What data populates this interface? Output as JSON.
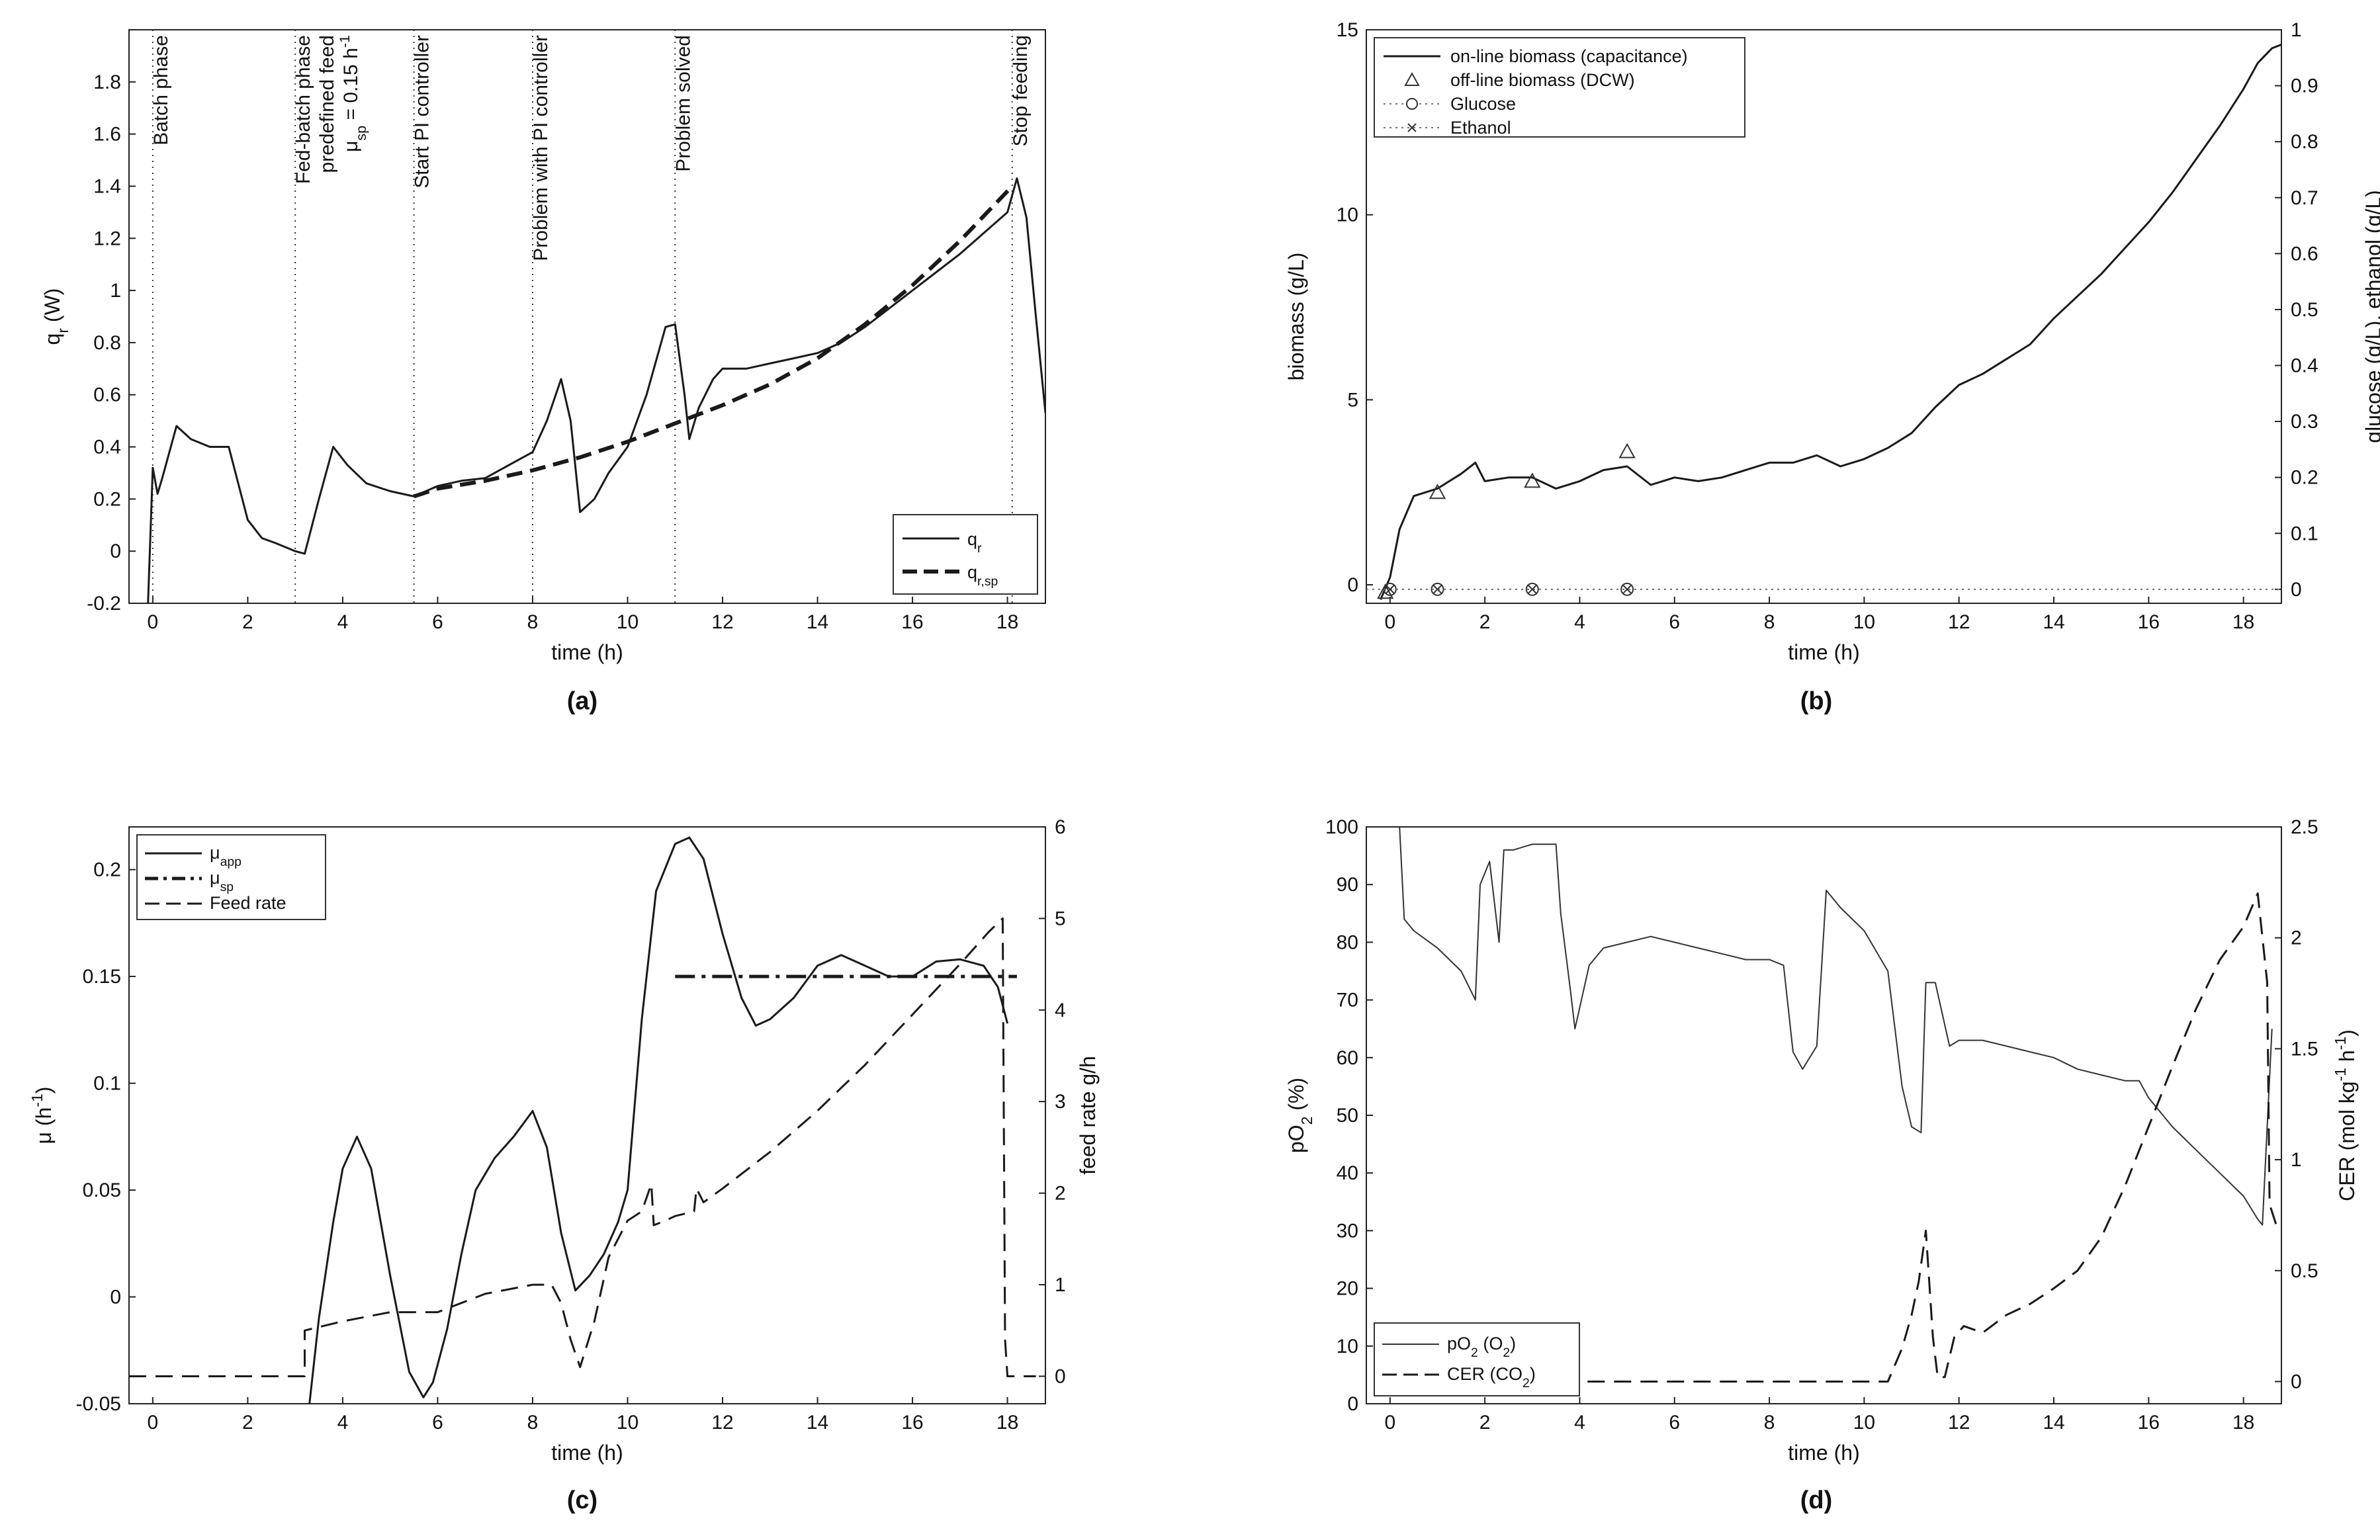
{
  "chart_data": [
    {
      "type": "line",
      "panel_label": "(a)",
      "xlabel": "time (h)",
      "ylabel": "q_r (W)",
      "xlim": [
        -0.5,
        18.8
      ],
      "ylim": [
        -0.2,
        2.0
      ],
      "xticks": [
        0,
        2,
        4,
        6,
        8,
        10,
        12,
        14,
        16,
        18
      ],
      "yticks": [
        -0.2,
        0,
        0.2,
        0.4,
        0.6,
        0.8,
        1,
        1.2,
        1.4,
        1.6,
        1.8
      ],
      "legend_position": "bottom-right",
      "vlines": [
        0,
        3,
        5.5,
        8,
        11,
        18.1
      ],
      "annotations": [
        {
          "x": 0,
          "text": "Batch phase"
        },
        {
          "x": 3,
          "text": "Fed-batch phase"
        },
        {
          "x": 3,
          "text": "predefined feed"
        },
        {
          "x": 3,
          "text": "μsp = 0.15 h⁻¹"
        },
        {
          "x": 5.5,
          "text": "Start PI controller"
        },
        {
          "x": 8,
          "text": "Problem with PI controller"
        },
        {
          "x": 11,
          "text": "Problem solved"
        },
        {
          "x": 18.1,
          "text": "Stop feeding"
        }
      ],
      "series": [
        {
          "name": "q_r",
          "style": "solid",
          "x": [
            -0.1,
            0,
            0.1,
            0.2,
            0.5,
            0.8,
            1.2,
            1.6,
            2.0,
            2.3,
            2.6,
            3.0,
            3.2,
            3.5,
            3.8,
            4.1,
            4.5,
            5.0,
            5.5,
            6.0,
            6.5,
            7.0,
            7.5,
            8.0,
            8.3,
            8.6,
            8.8,
            9.0,
            9.3,
            9.6,
            10.0,
            10.4,
            10.8,
            11.0,
            11.2,
            11.3,
            11.5,
            11.8,
            12.0,
            12.5,
            13.0,
            13.5,
            14.0,
            14.5,
            15.0,
            15.5,
            16.0,
            16.5,
            17.0,
            17.5,
            18.0,
            18.2,
            18.4,
            18.6,
            18.8
          ],
          "y": [
            -0.2,
            0.32,
            0.22,
            0.28,
            0.48,
            0.43,
            0.4,
            0.4,
            0.12,
            0.05,
            0.03,
            0.0,
            -0.01,
            0.2,
            0.4,
            0.33,
            0.26,
            0.23,
            0.21,
            0.25,
            0.27,
            0.28,
            0.33,
            0.38,
            0.5,
            0.66,
            0.5,
            0.15,
            0.2,
            0.3,
            0.4,
            0.6,
            0.86,
            0.87,
            0.6,
            0.43,
            0.55,
            0.66,
            0.7,
            0.7,
            0.72,
            0.74,
            0.76,
            0.8,
            0.86,
            0.93,
            1.0,
            1.07,
            1.14,
            1.22,
            1.3,
            1.43,
            1.28,
            0.9,
            0.53
          ]
        },
        {
          "name": "q_r,sp",
          "style": "dashed",
          "x": [
            5.5,
            6,
            7,
            8,
            9,
            10,
            11,
            12,
            13,
            14,
            15,
            16,
            17,
            18.1
          ],
          "y": [
            0.21,
            0.24,
            0.27,
            0.31,
            0.36,
            0.42,
            0.49,
            0.56,
            0.64,
            0.74,
            0.87,
            1.02,
            1.19,
            1.4
          ]
        }
      ]
    },
    {
      "type": "line",
      "panel_label": "(b)",
      "xlabel": "time (h)",
      "ylabel": "biomass (g/L)",
      "y2label": "glucose (g/L), ethanol (g/L)",
      "xlim": [
        -0.5,
        18.8
      ],
      "ylim": [
        -0.5,
        15
      ],
      "y2lim": [
        -0.025,
        1.0
      ],
      "xticks": [
        0,
        2,
        4,
        6,
        8,
        10,
        12,
        14,
        16,
        18
      ],
      "yticks": [
        0,
        5,
        10,
        15
      ],
      "y2ticks": [
        0,
        0.1,
        0.2,
        0.3,
        0.4,
        0.5,
        0.6,
        0.7,
        0.8,
        0.9,
        1
      ],
      "legend_position": "top-left",
      "series": [
        {
          "name": "on-line biomass (capacitance)",
          "style": "solid",
          "x": [
            -0.2,
            0,
            0.2,
            0.5,
            1.0,
            1.5,
            1.8,
            2.0,
            2.5,
            3.0,
            3.5,
            4.0,
            4.5,
            5.0,
            5.5,
            6.0,
            6.5,
            7.0,
            7.5,
            8.0,
            8.5,
            9.0,
            9.5,
            10.0,
            10.5,
            11.0,
            11.5,
            12.0,
            12.5,
            13.0,
            13.5,
            14.0,
            14.5,
            15.0,
            15.5,
            16.0,
            16.5,
            17.0,
            17.5,
            18.0,
            18.3,
            18.6,
            18.8
          ],
          "y": [
            -0.4,
            0.2,
            1.5,
            2.4,
            2.6,
            3.0,
            3.3,
            2.8,
            2.9,
            2.9,
            2.6,
            2.8,
            3.1,
            3.2,
            2.7,
            2.9,
            2.8,
            2.9,
            3.1,
            3.3,
            3.3,
            3.5,
            3.2,
            3.4,
            3.7,
            4.1,
            4.8,
            5.4,
            5.7,
            6.1,
            6.5,
            7.2,
            7.8,
            8.4,
            9.1,
            9.8,
            10.6,
            11.5,
            12.4,
            13.4,
            14.1,
            14.5,
            14.6
          ]
        },
        {
          "name": "off-line biomass (DCW)",
          "style": "triangles",
          "x": [
            -0.1,
            1,
            3,
            5
          ],
          "y": [
            -0.2,
            2.5,
            2.8,
            3.6
          ]
        },
        {
          "name": "Glucose",
          "style": "dotted-circle",
          "axis": "right",
          "x": [
            0,
            1,
            3,
            5
          ],
          "y": [
            0,
            0,
            0,
            0
          ]
        },
        {
          "name": "Ethanol",
          "style": "dotted-x",
          "axis": "right",
          "x": [
            0,
            1,
            3,
            5
          ],
          "y": [
            0,
            0,
            0,
            0
          ]
        }
      ]
    },
    {
      "type": "line",
      "panel_label": "(c)",
      "xlabel": "time (h)",
      "ylabel": "μ (h⁻¹)",
      "y2label": "feed rate g/h",
      "xlim": [
        -0.5,
        18.8
      ],
      "ylim": [
        -0.05,
        0.22
      ],
      "y2lim": [
        -0.3,
        6.0
      ],
      "xticks": [
        0,
        2,
        4,
        6,
        8,
        10,
        12,
        14,
        16,
        18
      ],
      "yticks": [
        -0.05,
        0,
        0.05,
        0.1,
        0.15,
        0.2
      ],
      "y2ticks": [
        0,
        1,
        2,
        3,
        4,
        5,
        6
      ],
      "legend_position": "top-left",
      "series": [
        {
          "name": "μapp",
          "style": "solid",
          "x": [
            3.3,
            3.5,
            3.8,
            4.0,
            4.3,
            4.6,
            5.0,
            5.4,
            5.7,
            5.9,
            6.2,
            6.5,
            6.8,
            7.2,
            7.6,
            8.0,
            8.3,
            8.6,
            8.9,
            9.2,
            9.5,
            9.8,
            10.0,
            10.3,
            10.6,
            11.0,
            11.3,
            11.6,
            12.0,
            12.4,
            12.7,
            13.0,
            13.5,
            14.0,
            14.5,
            15.0,
            15.5,
            16.0,
            16.5,
            17.0,
            17.5,
            17.8,
            18.0
          ],
          "y": [
            -0.05,
            -0.01,
            0.035,
            0.06,
            0.075,
            0.06,
            0.01,
            -0.035,
            -0.047,
            -0.04,
            -0.015,
            0.02,
            0.05,
            0.065,
            0.075,
            0.087,
            0.07,
            0.03,
            0.003,
            0.01,
            0.02,
            0.035,
            0.05,
            0.13,
            0.19,
            0.212,
            0.215,
            0.205,
            0.17,
            0.14,
            0.127,
            0.13,
            0.14,
            0.155,
            0.16,
            0.155,
            0.15,
            0.15,
            0.157,
            0.158,
            0.155,
            0.145,
            0.128
          ]
        },
        {
          "name": "μsp",
          "style": "dash-dot",
          "x": [
            11,
            18.2
          ],
          "y": [
            0.15,
            0.15
          ]
        },
        {
          "name": "Feed rate",
          "style": "dashed",
          "axis": "right",
          "x": [
            -0.5,
            3.2,
            3.2,
            4.0,
            5.0,
            6.0,
            6.5,
            7.0,
            7.5,
            8.0,
            8.4,
            8.6,
            8.8,
            9.0,
            9.3,
            9.6,
            10.0,
            10.3,
            10.5,
            10.55,
            10.8,
            11.0,
            11.4,
            11.45,
            11.6,
            12.0,
            13.0,
            14.0,
            15.0,
            16.0,
            17.0,
            17.6,
            17.9,
            17.95,
            18.0,
            18.6
          ],
          "y": [
            0,
            0,
            0.5,
            0.6,
            0.7,
            0.7,
            0.8,
            0.9,
            0.95,
            1.0,
            1.0,
            0.8,
            0.4,
            0.1,
            0.6,
            1.3,
            1.7,
            1.8,
            2.1,
            1.65,
            1.7,
            1.75,
            1.8,
            2.05,
            1.9,
            2.05,
            2.45,
            2.9,
            3.4,
            3.95,
            4.5,
            4.85,
            5.0,
            0.4,
            0,
            0
          ]
        }
      ]
    },
    {
      "type": "line",
      "panel_label": "(d)",
      "xlabel": "time (h)",
      "ylabel": "pO₂ (%)",
      "y2label": "CER (mol kg⁻¹ h⁻¹)",
      "xlim": [
        -0.5,
        18.8
      ],
      "ylim": [
        0,
        100
      ],
      "y2lim": [
        -0.1,
        2.5
      ],
      "xticks": [
        0,
        2,
        4,
        6,
        8,
        10,
        12,
        14,
        16,
        18
      ],
      "yticks": [
        0,
        10,
        20,
        30,
        40,
        50,
        60,
        70,
        80,
        90,
        100
      ],
      "y2ticks": [
        0,
        0.5,
        1,
        1.5,
        2,
        2.5
      ],
      "legend_position": "bottom-left",
      "series": [
        {
          "name": "pO₂ (O₂)",
          "style": "solid-thin",
          "x": [
            0.2,
            0.3,
            0.5,
            1.0,
            1.5,
            1.8,
            1.9,
            2.1,
            2.3,
            2.4,
            2.6,
            3.0,
            3.5,
            3.6,
            3.8,
            3.9,
            4.2,
            4.5,
            5.0,
            5.5,
            6.0,
            6.5,
            7.0,
            7.5,
            8.0,
            8.3,
            8.5,
            8.7,
            9.0,
            9.2,
            9.5,
            10.0,
            10.5,
            10.8,
            11.0,
            11.2,
            11.3,
            11.5,
            11.8,
            12.0,
            12.5,
            13.0,
            13.5,
            14.0,
            14.5,
            15.0,
            15.5,
            15.8,
            16.0,
            16.5,
            17.0,
            17.5,
            18.0,
            18.3,
            18.4,
            18.6
          ],
          "y": [
            100,
            84,
            82,
            79,
            75,
            70,
            90,
            94,
            80,
            96,
            96,
            97,
            97,
            85,
            72,
            65,
            76,
            79,
            80,
            81,
            80,
            79,
            78,
            77,
            77,
            76,
            61,
            58,
            62,
            89,
            86,
            82,
            75,
            55,
            48,
            47,
            73,
            73,
            62,
            63,
            63,
            62,
            61,
            60,
            58,
            57,
            56,
            56,
            53,
            48,
            44,
            40,
            36,
            32,
            31,
            65
          ]
        },
        {
          "name": "CER (CO₂)",
          "style": "dashed",
          "axis": "right",
          "x": [
            -0.3,
            10.5,
            10.8,
            11.0,
            11.15,
            11.3,
            11.45,
            11.55,
            11.7,
            11.9,
            12.1,
            12.5,
            13.0,
            13.5,
            14.0,
            14.5,
            15.0,
            15.5,
            16.0,
            16.5,
            17.0,
            17.5,
            18.0,
            18.3,
            18.5,
            18.55,
            18.7
          ],
          "y": [
            0,
            0,
            0.15,
            0.3,
            0.45,
            0.68,
            0.2,
            0.02,
            0.02,
            0.2,
            0.25,
            0.22,
            0.3,
            0.35,
            0.42,
            0.5,
            0.65,
            0.88,
            1.15,
            1.42,
            1.68,
            1.9,
            2.05,
            2.2,
            1.8,
            0.8,
            0.7
          ]
        }
      ]
    }
  ]
}
